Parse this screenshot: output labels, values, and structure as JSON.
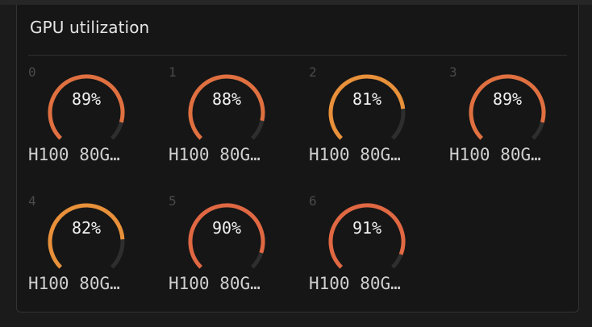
{
  "panel": {
    "title": "GPU utilization"
  },
  "gpus": [
    {
      "index": "0",
      "utilization": 89,
      "label": "89%",
      "name": "H100 80G…",
      "color": "#e07040"
    },
    {
      "index": "1",
      "utilization": 88,
      "label": "88%",
      "name": "H100 80G…",
      "color": "#e07040"
    },
    {
      "index": "2",
      "utilization": 81,
      "label": "81%",
      "name": "H100 80G…",
      "color": "#e8903a"
    },
    {
      "index": "3",
      "utilization": 89,
      "label": "89%",
      "name": "H100 80G…",
      "color": "#e07040"
    },
    {
      "index": "4",
      "utilization": 82,
      "label": "82%",
      "name": "H100 80G…",
      "color": "#e8903a"
    },
    {
      "index": "5",
      "utilization": 90,
      "label": "90%",
      "name": "H100 80G…",
      "color": "#e06842"
    },
    {
      "index": "6",
      "utilization": 91,
      "label": "91%",
      "name": "H100 80G…",
      "color": "#e06842"
    }
  ],
  "colors": {
    "track": "#2e2e2e"
  }
}
